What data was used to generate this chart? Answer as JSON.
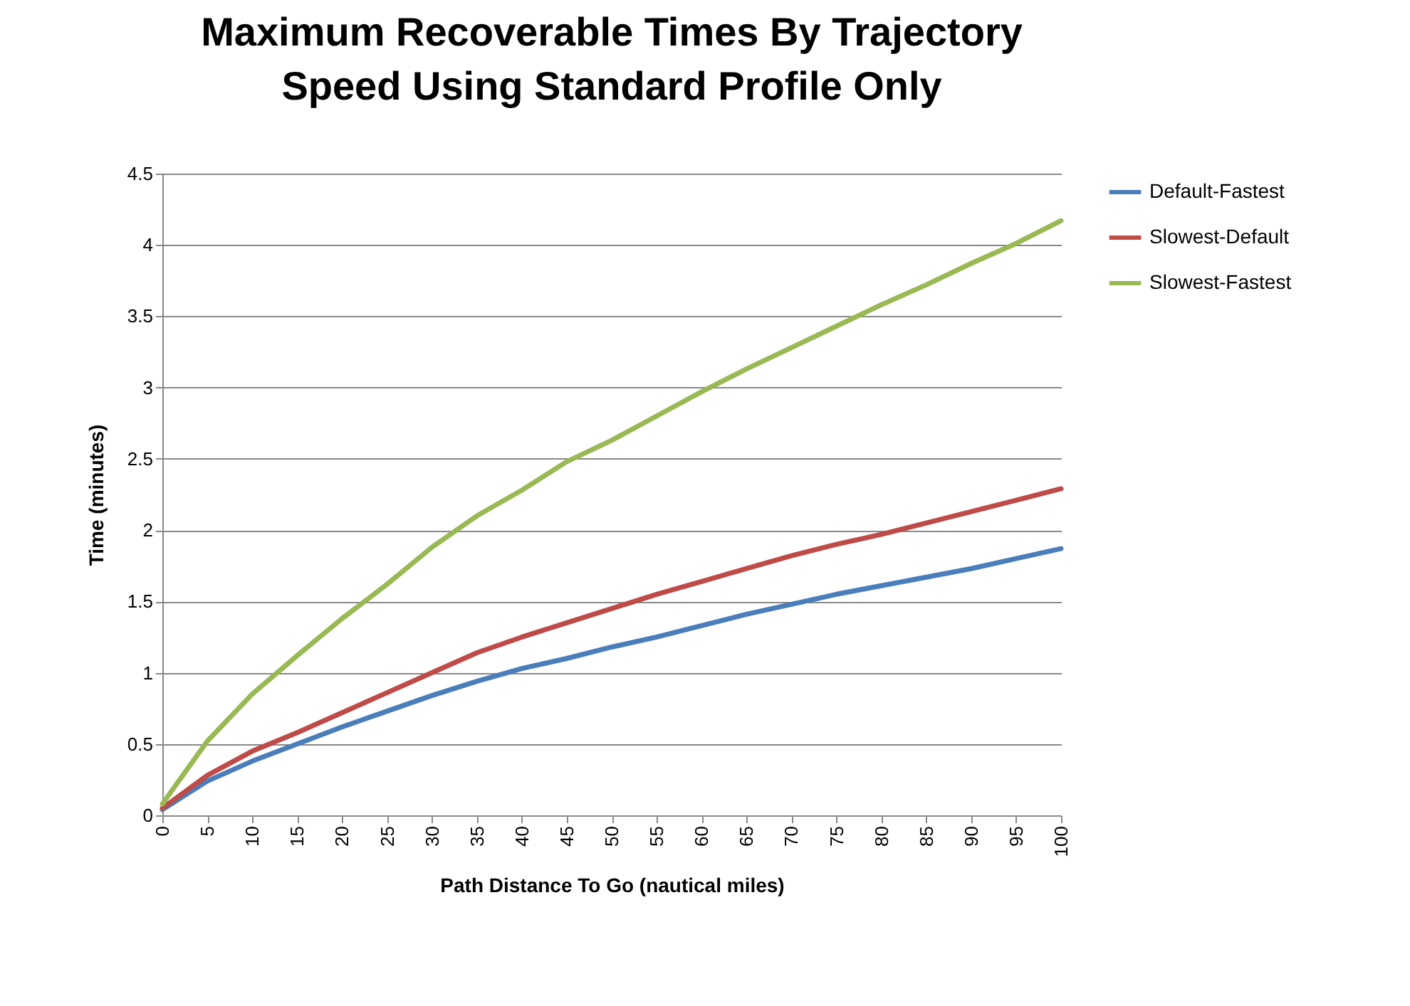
{
  "chart_data": {
    "type": "line",
    "title": "Maximum Recoverable Times By Trajectory\nSpeed Using Standard Profile Only",
    "xlabel": "Path Distance  To Go (nautical miles)",
    "ylabel": "Time (minutes)",
    "x": [
      0,
      5,
      10,
      15,
      20,
      25,
      30,
      35,
      40,
      45,
      50,
      55,
      60,
      65,
      70,
      75,
      80,
      85,
      90,
      95,
      100
    ],
    "series": [
      {
        "name": "Default-Fastest",
        "color": "#4a7ebb",
        "values": [
          0.04,
          0.24,
          0.38,
          0.5,
          0.62,
          0.73,
          0.84,
          0.94,
          1.03,
          1.1,
          1.18,
          1.25,
          1.33,
          1.41,
          1.48,
          1.55,
          1.61,
          1.67,
          1.73,
          1.8,
          1.87
        ]
      },
      {
        "name": "Slowest-Default",
        "color": "#be4b48",
        "values": [
          0.05,
          0.28,
          0.45,
          0.58,
          0.72,
          0.86,
          1.0,
          1.14,
          1.25,
          1.35,
          1.45,
          1.55,
          1.64,
          1.73,
          1.82,
          1.9,
          1.97,
          2.05,
          2.13,
          2.21,
          2.29
        ]
      },
      {
        "name": "Slowest-Fastest",
        "color": "#98b954",
        "values": [
          0.08,
          0.52,
          0.85,
          1.12,
          1.38,
          1.62,
          1.88,
          2.1,
          2.28,
          2.48,
          2.63,
          2.8,
          2.97,
          3.13,
          3.28,
          3.43,
          3.58,
          3.72,
          3.87,
          4.01,
          4.17
        ]
      }
    ],
    "xlim": [
      0,
      100
    ],
    "xticks": [
      0,
      5,
      10,
      15,
      20,
      25,
      30,
      35,
      40,
      45,
      50,
      55,
      60,
      65,
      70,
      75,
      80,
      85,
      90,
      95,
      100
    ],
    "ylim": [
      0,
      4.5
    ],
    "yticks": [
      0,
      0.5,
      1,
      1.5,
      2,
      2.5,
      3,
      3.5,
      4,
      4.5
    ],
    "grid": "y",
    "legend": "right",
    "marker": "none",
    "line_style": "solid"
  }
}
